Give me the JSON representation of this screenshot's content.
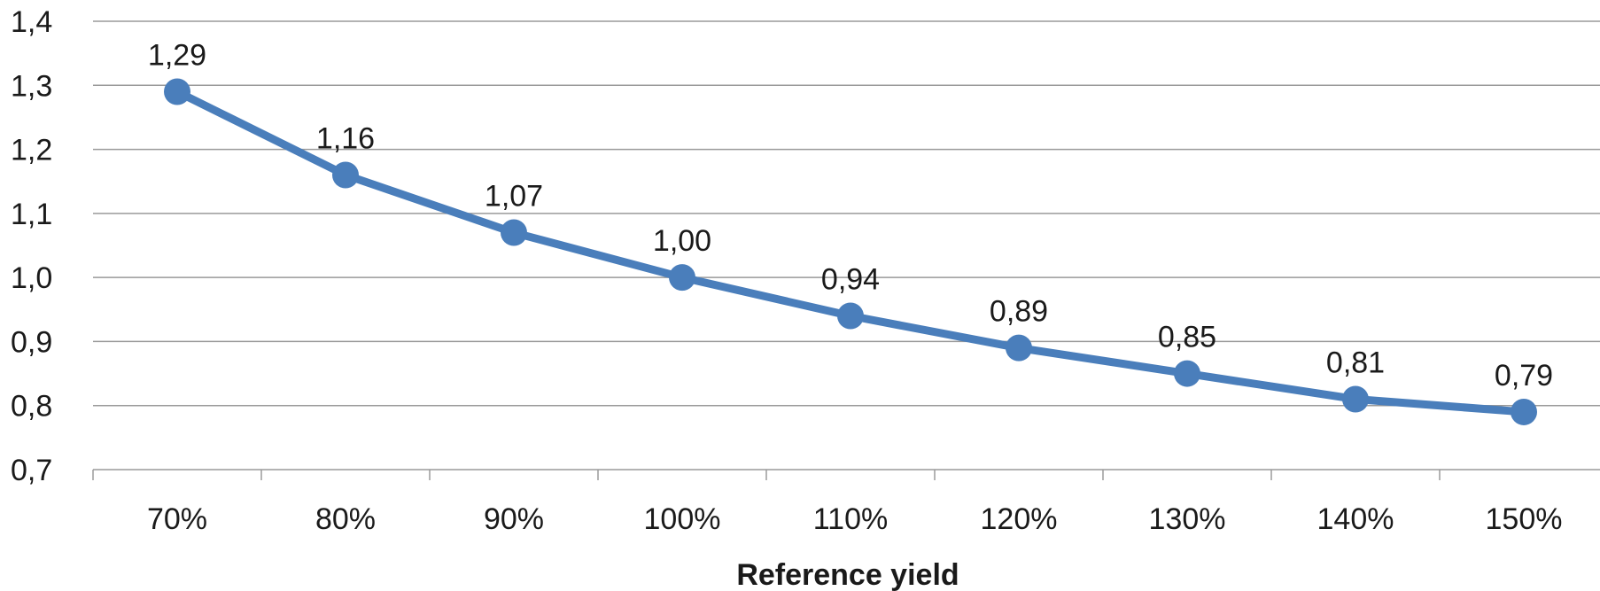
{
  "chart_data": {
    "type": "line",
    "title": "",
    "xlabel": "Reference yield",
    "ylabel": "",
    "categories": [
      "70%",
      "80%",
      "90%",
      "100%",
      "110%",
      "120%",
      "130%",
      "140%",
      "150%"
    ],
    "series": [
      {
        "values": [
          1.29,
          1.16,
          1.07,
          1.0,
          0.94,
          0.89,
          0.85,
          0.81,
          0.79
        ],
        "labels": [
          "1,29",
          "1,16",
          "1,07",
          "1,00",
          "0,94",
          "0,89",
          "0,85",
          "0,81",
          "0,79"
        ]
      }
    ],
    "ylim": [
      0.7,
      1.4
    ],
    "yticks": [
      {
        "value": 0.7,
        "label": "0,7"
      },
      {
        "value": 0.8,
        "label": "0,8"
      },
      {
        "value": 0.9,
        "label": "0,9"
      },
      {
        "value": 1.0,
        "label": "1,0"
      },
      {
        "value": 1.1,
        "label": "1,1"
      },
      {
        "value": 1.2,
        "label": "1,2"
      },
      {
        "value": 1.3,
        "label": "1,3"
      },
      {
        "value": 1.4,
        "label": "1,4"
      }
    ],
    "grid": true,
    "legend": "none",
    "colors": {
      "line": "#4a7ebb",
      "marker": "#4a7ebb",
      "gridline": "#9a9a9a",
      "axis": "#9a9a9a",
      "text": "#1a1a1a"
    }
  }
}
